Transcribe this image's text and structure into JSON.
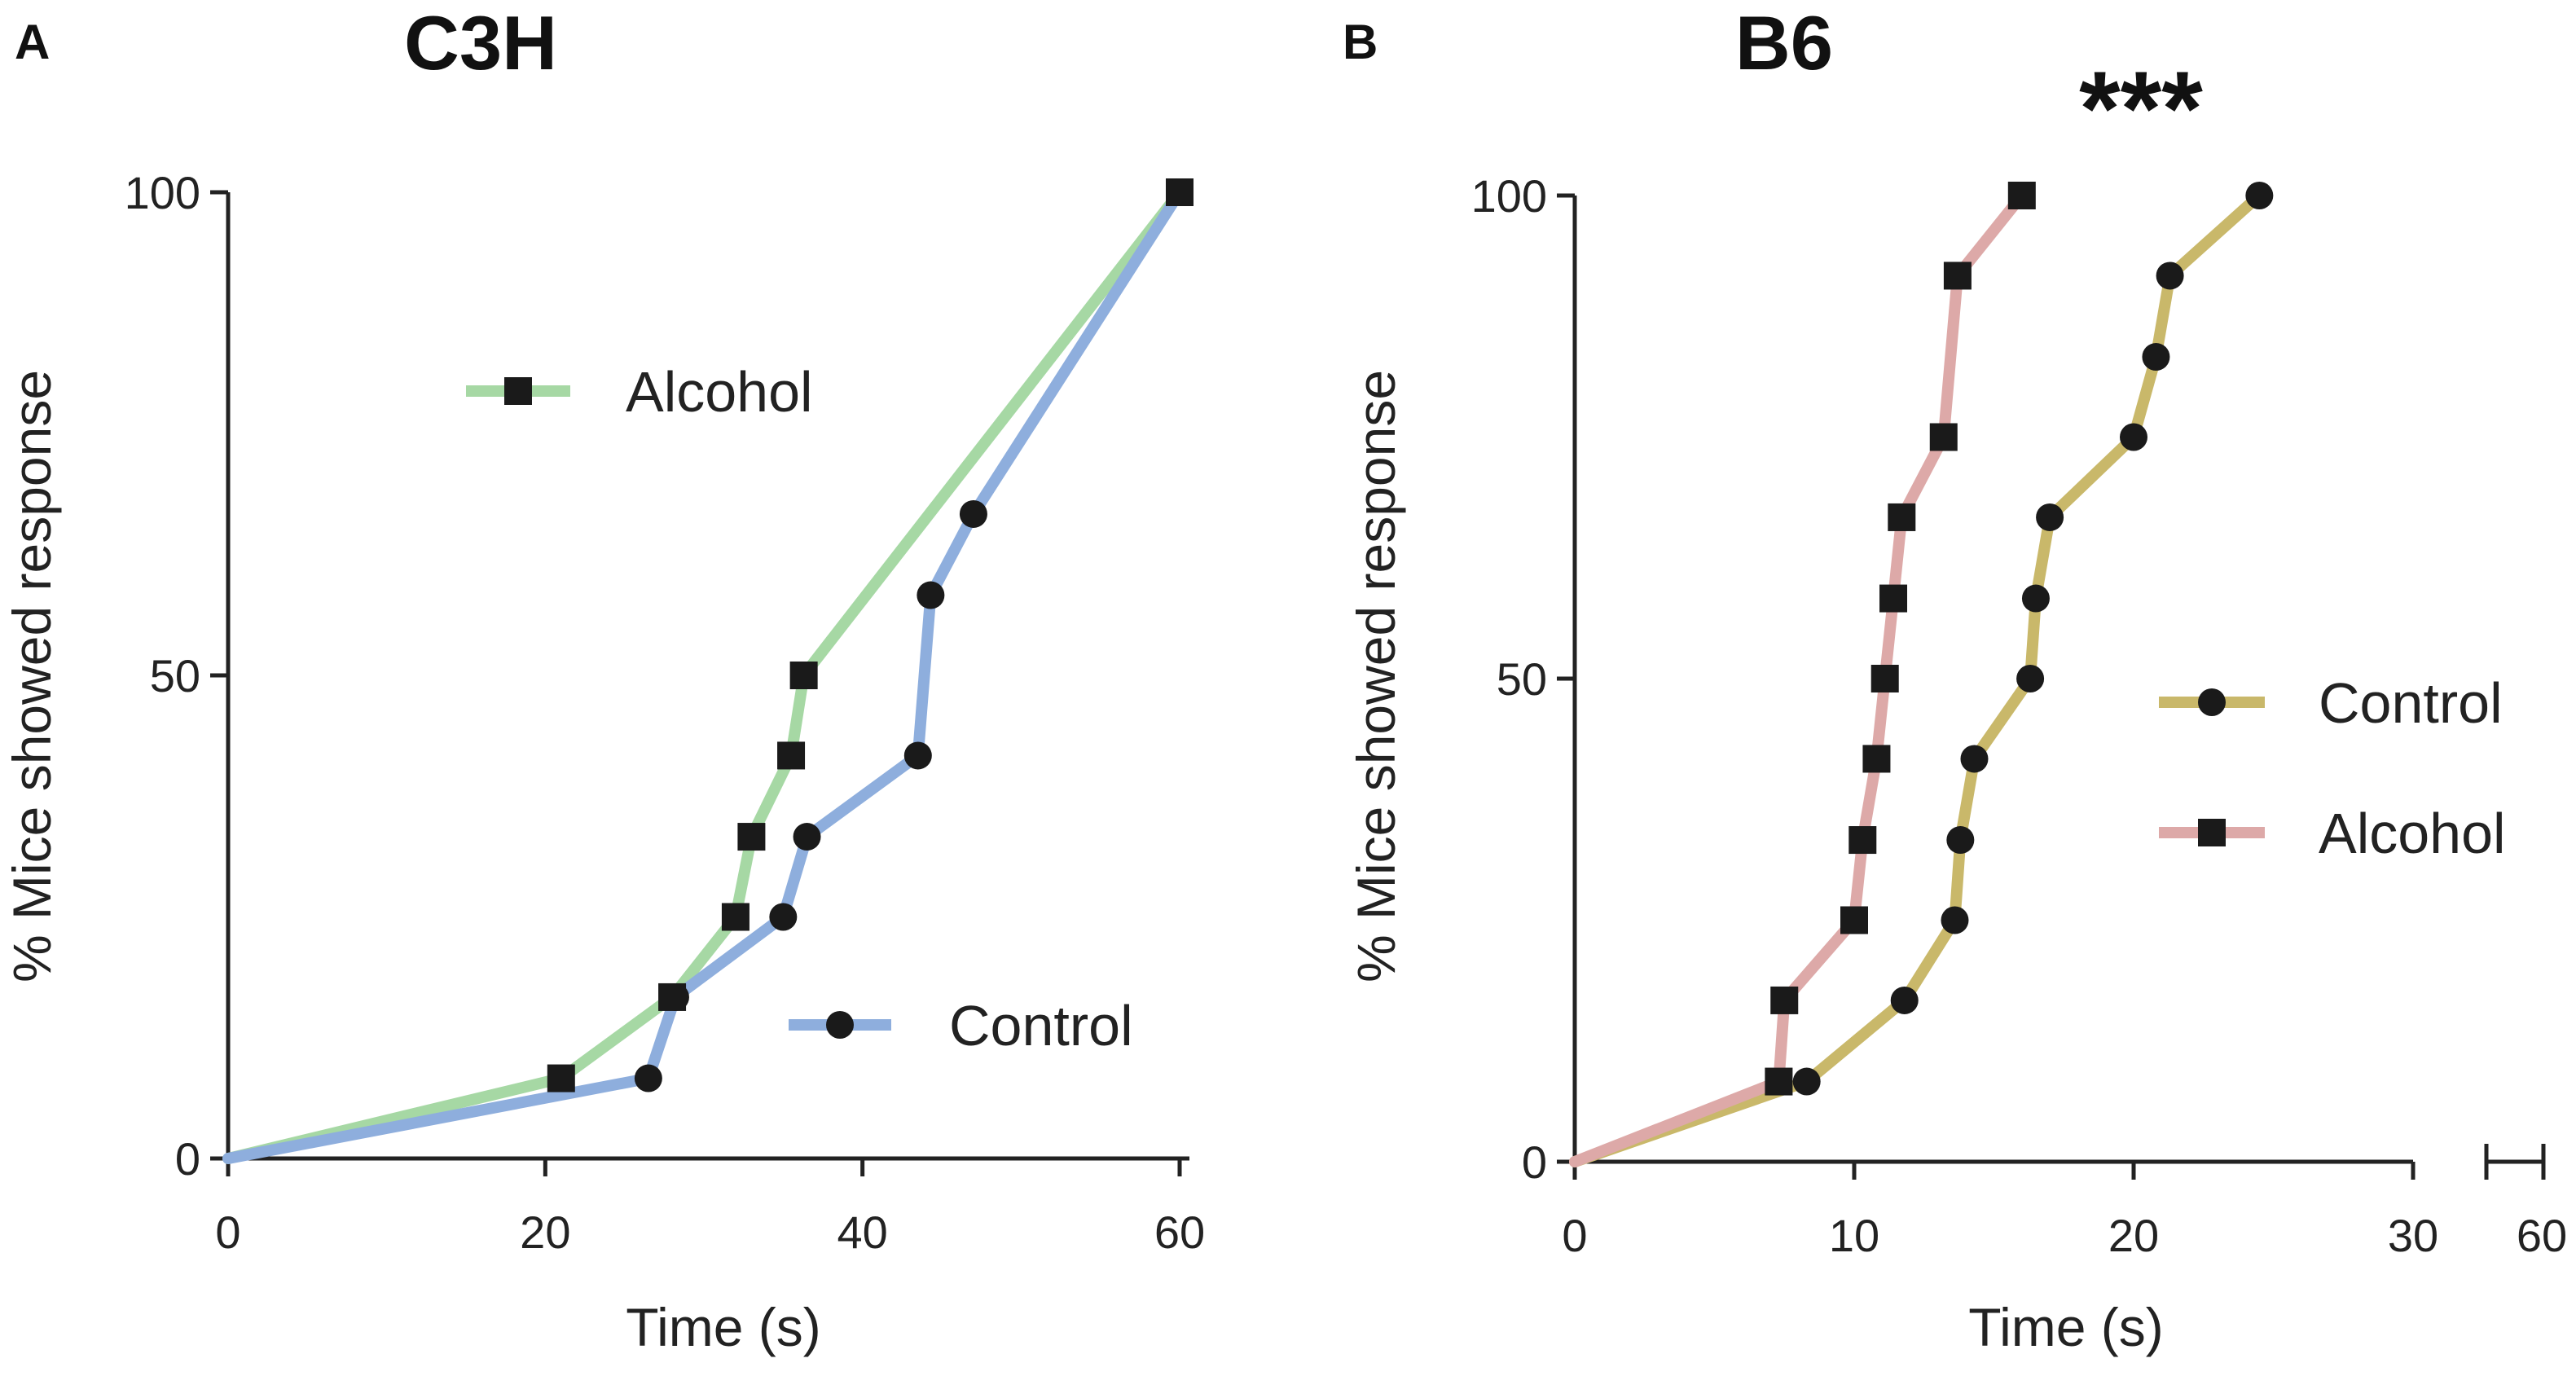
{
  "chart_data": [
    {
      "panel": "A",
      "title": "C3H",
      "type": "line",
      "xlabel": "Time (s)",
      "ylabel": "% Mice showed response",
      "xlim": [
        0,
        60
      ],
      "ylim": [
        0,
        100
      ],
      "xticks": [
        0,
        20,
        40,
        60
      ],
      "yticks": [
        0,
        50,
        100
      ],
      "legend_position": "inside",
      "series": [
        {
          "name": "Alcohol",
          "color": "#a6d8a4",
          "marker": "square",
          "x": [
            0,
            21,
            28,
            32,
            33,
            35.5,
            36.3,
            60
          ],
          "y": [
            0,
            8.3,
            16.7,
            25,
            33.3,
            41.7,
            50,
            100
          ]
        },
        {
          "name": "Control",
          "color": "#8eaedd",
          "marker": "circle",
          "x": [
            0,
            26.5,
            28.2,
            35,
            36.5,
            43.5,
            44.3,
            47,
            60
          ],
          "y": [
            0,
            8.3,
            16.7,
            25,
            33.3,
            41.7,
            58.3,
            66.7,
            100
          ]
        }
      ]
    },
    {
      "panel": "B",
      "title": "B6",
      "annotation": "***",
      "type": "line",
      "xlabel": "Time (s)",
      "ylabel": "% Mice showed response",
      "xlim": [
        0,
        30
      ],
      "x_break": true,
      "x_extra_tick": "60",
      "ylim": [
        0,
        100
      ],
      "xticks": [
        0,
        10,
        20,
        30
      ],
      "yticks": [
        0,
        50,
        100
      ],
      "legend_position": "right",
      "series": [
        {
          "name": "Control",
          "color": "#c9b86a",
          "marker": "circle",
          "x": [
            0,
            8.3,
            11.8,
            13.6,
            13.8,
            14.3,
            16.3,
            16.5,
            17,
            20,
            20.8,
            21.3,
            24.5
          ],
          "y": [
            0,
            8.3,
            16.7,
            25,
            33.3,
            41.7,
            50,
            58.3,
            66.7,
            75,
            83.3,
            91.7,
            100
          ]
        },
        {
          "name": "Alcohol",
          "color": "#dda9a8",
          "marker": "square",
          "x": [
            0,
            7.3,
            7.5,
            10,
            10.3,
            10.8,
            11.1,
            11.4,
            11.7,
            13.2,
            13.7,
            16
          ],
          "y": [
            0,
            8.3,
            16.7,
            25,
            33.3,
            41.7,
            50,
            58.3,
            66.7,
            75,
            91.7,
            100
          ]
        }
      ]
    }
  ]
}
